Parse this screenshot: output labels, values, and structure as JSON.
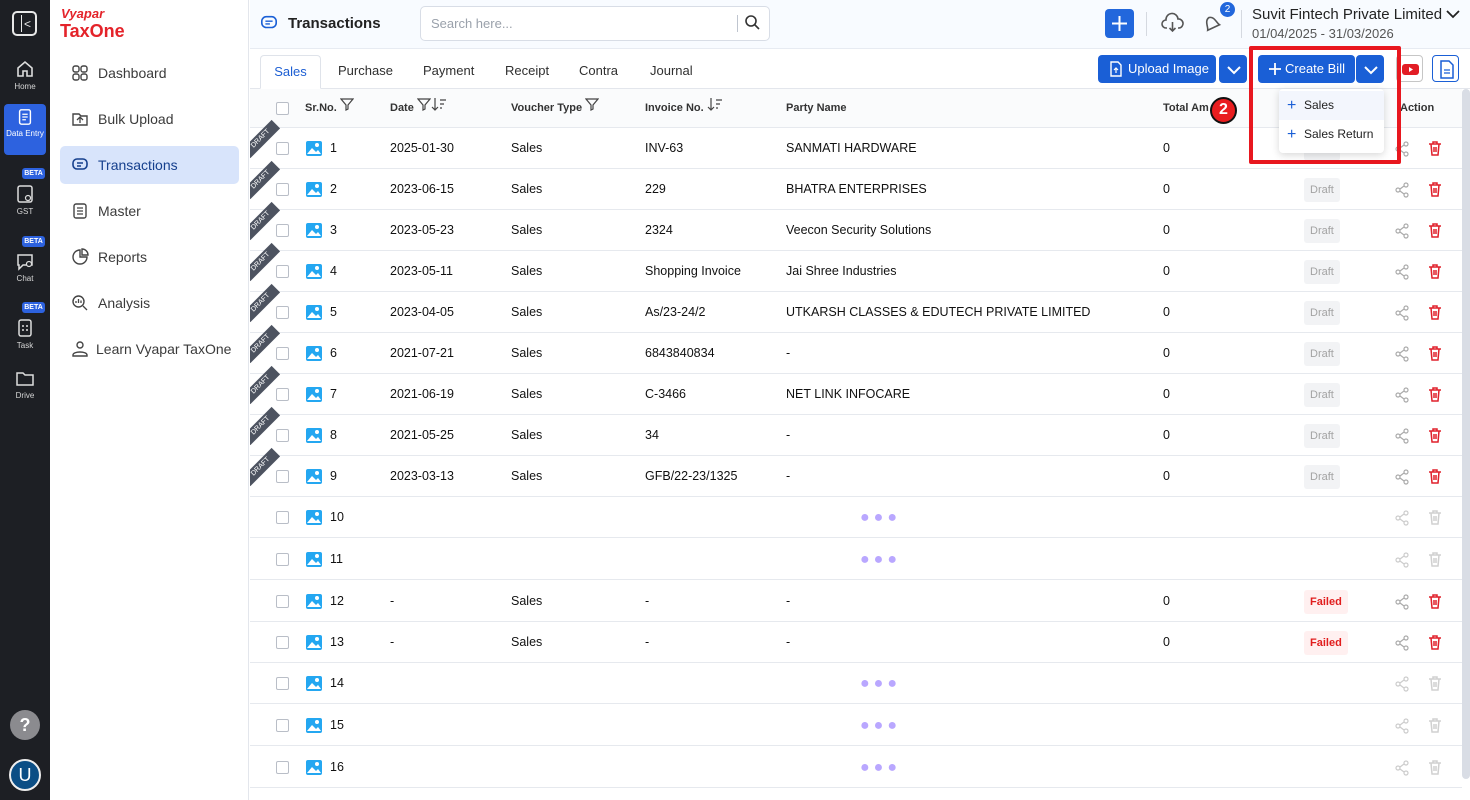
{
  "brand": {
    "line1": "Vyapar",
    "line2": "TaxOne"
  },
  "rail": [
    {
      "label": "Home",
      "icon": "home-icon"
    },
    {
      "label": "Data Entry",
      "icon": "data-entry-icon"
    },
    {
      "label": "GST",
      "icon": "gst-icon",
      "badge": "BETA"
    },
    {
      "label": "Chat",
      "icon": "chat-icon",
      "badge": "BETA"
    },
    {
      "label": "Task",
      "icon": "task-icon",
      "badge": "BETA"
    },
    {
      "label": "Drive",
      "icon": "drive-icon"
    }
  ],
  "sidebar": {
    "items": [
      "Dashboard",
      "Bulk Upload",
      "Transactions",
      "Master",
      "Reports",
      "Analysis",
      "Learn Vyapar TaxOne"
    ]
  },
  "header": {
    "title": "Transactions",
    "search_placeholder": "Search here...",
    "notifications": "2",
    "company": "Suvit Fintech Private Limited",
    "period": "01/04/2025 - 31/03/2026"
  },
  "tabs": [
    "Sales",
    "Purchase",
    "Payment",
    "Receipt",
    "Contra",
    "Journal"
  ],
  "actions": {
    "upload": "Upload Image",
    "create": "Create Bill",
    "menu": [
      "Sales",
      "Sales Return"
    ],
    "step": "2"
  },
  "columns": {
    "sr": "Sr.No.",
    "date": "Date",
    "voucher": "Voucher Type",
    "invoice": "Invoice No.",
    "party": "Party Name",
    "amount": "Total Am",
    "action": "Action"
  },
  "rows": [
    {
      "sr": "1",
      "date": "2025-01-30",
      "voucher": "Sales",
      "invoice": "INV-63",
      "party": "SANMATI HARDWARE",
      "amount": "0",
      "status": "Draft",
      "tag": "DRAFT"
    },
    {
      "sr": "2",
      "date": "2023-06-15",
      "voucher": "Sales",
      "invoice": "229",
      "party": "BHATRA ENTERPRISES",
      "amount": "0",
      "status": "Draft",
      "tag": "DRAFT"
    },
    {
      "sr": "3",
      "date": "2023-05-23",
      "voucher": "Sales",
      "invoice": "2324",
      "party": "Veecon Security Solutions",
      "amount": "0",
      "status": "Draft",
      "tag": "DRAFT"
    },
    {
      "sr": "4",
      "date": "2023-05-11",
      "voucher": "Sales",
      "invoice": "Shopping Invoice",
      "party": "Jai Shree Industries",
      "amount": "0",
      "status": "Draft",
      "tag": "DRAFT"
    },
    {
      "sr": "5",
      "date": "2023-04-05",
      "voucher": "Sales",
      "invoice": "As/23-24/2",
      "party": "UTKARSH CLASSES & EDUTECH PRIVATE LIMITED",
      "amount": "0",
      "status": "Draft",
      "tag": "DRAFT"
    },
    {
      "sr": "6",
      "date": "2021-07-21",
      "voucher": "Sales",
      "invoice": "6843840834",
      "party": "-",
      "amount": "0",
      "status": "Draft",
      "tag": "DRAFT"
    },
    {
      "sr": "7",
      "date": "2021-06-19",
      "voucher": "Sales",
      "invoice": "C-3466",
      "party": "NET LINK INFOCARE",
      "amount": "0",
      "status": "Draft",
      "tag": "DRAFT"
    },
    {
      "sr": "8",
      "date": "2021-05-25",
      "voucher": "Sales",
      "invoice": "34",
      "party": "-",
      "amount": "0",
      "status": "Draft",
      "tag": "DRAFT"
    },
    {
      "sr": "9",
      "date": "2023-03-13",
      "voucher": "Sales",
      "invoice": "GFB/22-23/1325",
      "party": "-",
      "amount": "0",
      "status": "Draft",
      "tag": "DRAFT"
    },
    {
      "sr": "10",
      "loading": true
    },
    {
      "sr": "11",
      "loading": true
    },
    {
      "sr": "12",
      "date": "-",
      "voucher": "Sales",
      "invoice": "-",
      "party": "-",
      "amount": "0",
      "status": "Failed"
    },
    {
      "sr": "13",
      "date": "-",
      "voucher": "Sales",
      "invoice": "-",
      "party": "-",
      "amount": "0",
      "status": "Failed"
    },
    {
      "sr": "14",
      "loading": true
    },
    {
      "sr": "15",
      "loading": true
    },
    {
      "sr": "16",
      "loading": true
    }
  ]
}
